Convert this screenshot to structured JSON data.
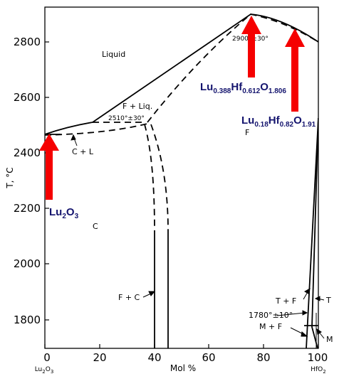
{
  "axes": {
    "ylabel": "T, °C",
    "xlabel": "Mol %",
    "x_left_label": "Lu2O3",
    "x_right_label": "HfO2",
    "x_ticks": [
      "0",
      "20",
      "40",
      "60",
      "80",
      "100"
    ],
    "y_ticks": [
      "1800",
      "2000",
      "2200",
      "2400",
      "2600",
      "2800"
    ],
    "x_range": [
      0,
      100
    ],
    "y_range": [
      1700,
      2920
    ]
  },
  "regions": {
    "liquid": "Liquid",
    "f_liq": "F + Liq.",
    "f": "F",
    "c": "C",
    "c_l": "C + L",
    "f_c": "F + C",
    "t_f": "T + F",
    "t": "T",
    "m_f": "M + F",
    "m": "M"
  },
  "annotations": {
    "max_temp": "2900°±30°",
    "eutectic": "2510°±30°",
    "eutectoid": "1780°±10°"
  },
  "compositions": {
    "lu2o3": {
      "parts": [
        {
          "t": "Lu",
          "s": "2"
        },
        {
          "t": "O",
          "s": "3"
        }
      ]
    },
    "fluorite_mid": {
      "parts": [
        {
          "t": "Lu",
          "s": "0.388"
        },
        {
          "t": "Hf",
          "s": "0.612"
        },
        {
          "t": "O",
          "s": "1.806"
        }
      ]
    },
    "fluorite_hf": {
      "parts": [
        {
          "t": "Lu",
          "s": "0.18"
        },
        {
          "t": "Hf",
          "s": "0.82"
        },
        {
          "t": "O",
          "s": "1.91"
        }
      ]
    }
  },
  "colors": {
    "arrow": "#f50000",
    "composition_text": "#14146e",
    "line": "#000000"
  }
}
